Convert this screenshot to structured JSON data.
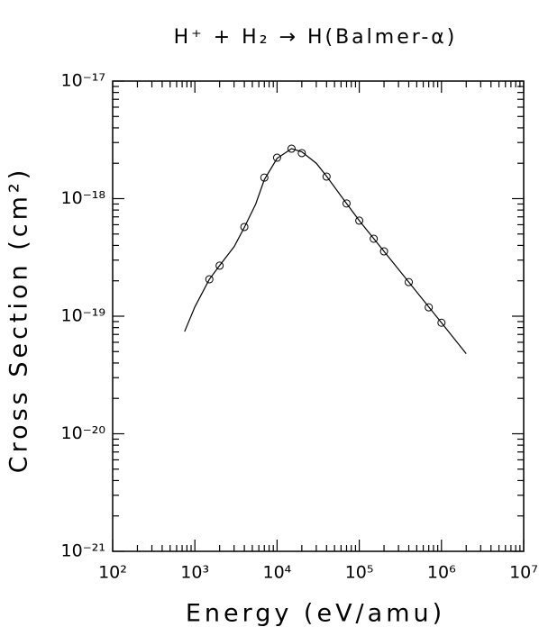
{
  "chart_data": {
    "type": "scatter",
    "title": "H⁺ + H₂ → H(Balmer-α)",
    "xlabel": "Energy (eV/amu)",
    "ylabel": "Cross Section (cm²)",
    "xscale": "log",
    "yscale": "log",
    "xlim": [
      100,
      10000000
    ],
    "ylim": [
      1e-21,
      1e-17
    ],
    "xticks": [
      {
        "value": 100,
        "label": "10²"
      },
      {
        "value": 1000,
        "label": "10³"
      },
      {
        "value": 10000,
        "label": "10⁴"
      },
      {
        "value": 100000,
        "label": "10⁵"
      },
      {
        "value": 1000000,
        "label": "10⁶"
      },
      {
        "value": 10000000,
        "label": "10⁷"
      }
    ],
    "yticks": [
      {
        "value": 1e-21,
        "label": "10⁻²¹"
      },
      {
        "value": 1e-20,
        "label": "10⁻²⁰"
      },
      {
        "value": 1e-19,
        "label": "10⁻¹⁹"
      },
      {
        "value": 1e-18,
        "label": "10⁻¹⁸"
      },
      {
        "value": 1e-17,
        "label": "10⁻¹⁷"
      }
    ],
    "color": "#000000",
    "series": [
      {
        "style": "marker",
        "x": [
          1500,
          2000,
          4000,
          7000,
          10000,
          15000,
          20000,
          40000,
          70000,
          100000,
          150000,
          200000,
          400000,
          700000,
          1000000
        ],
        "values": [
          2.06e-19,
          2.69e-19,
          5.74e-19,
          1.51e-18,
          2.23e-18,
          2.66e-18,
          2.44e-18,
          1.54e-18,
          9.1e-19,
          6.5e-19,
          4.56e-19,
          3.56e-19,
          1.95e-19,
          1.19e-19,
          8.8e-20
        ]
      },
      {
        "style": "line",
        "x": [
          750,
          1000,
          1500,
          2000,
          3000,
          4000,
          5500,
          7000,
          10000,
          15000,
          20000,
          30000,
          40000,
          70000,
          100000,
          200000,
          400000,
          1000000,
          2000000
        ],
        "values": [
          7.4e-20,
          1.2e-19,
          2.06e-19,
          2.7e-19,
          3.9e-19,
          5.7e-19,
          9e-19,
          1.45e-18,
          2.2e-18,
          2.66e-18,
          2.5e-18,
          2e-18,
          1.55e-18,
          9.1e-19,
          6.5e-19,
          3.56e-19,
          1.95e-19,
          8.8e-20,
          4.8e-20
        ]
      }
    ]
  }
}
